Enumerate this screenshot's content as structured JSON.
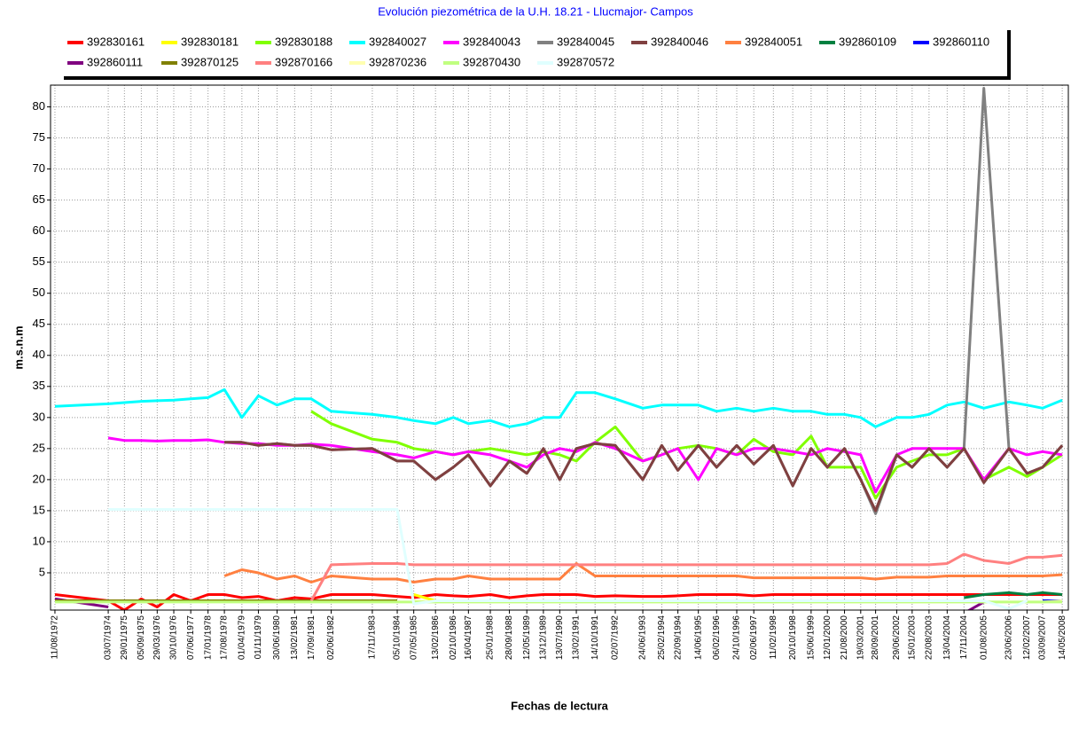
{
  "chart_data": {
    "type": "line",
    "title": "Evolución piezométrica de la U.H. 18.21 - Llucmajor- Campos",
    "xlabel": "Fechas de lectura",
    "ylabel": "m.s.n.m",
    "x": [
      "11/08/1972",
      "03/07/1974",
      "29/01/1975",
      "05/09/1975",
      "29/03/1976",
      "30/10/1976",
      "07/06/1977",
      "17/01/1978",
      "17/08/1978",
      "01/04/1979",
      "01/11/1979",
      "30/06/1980",
      "13/02/1981",
      "17/09/1981",
      "02/06/1982",
      "17/11/1983",
      "05/10/1984",
      "07/05/1985",
      "13/02/1986",
      "02/10/1986",
      "16/04/1987",
      "25/01/1988",
      "28/09/1988",
      "12/05/1989",
      "13/12/1989",
      "13/07/1990",
      "13/02/1991",
      "14/10/1991",
      "02/07/1992",
      "24/06/1993",
      "25/02/1994",
      "22/09/1994",
      "14/06/1995",
      "06/02/1996",
      "24/10/1996",
      "02/06/1997",
      "11/02/1998",
      "20/10/1998",
      "15/06/1999",
      "12/01/2000",
      "21/08/2000",
      "19/03/2001",
      "28/09/2001",
      "29/06/2002",
      "15/01/2003",
      "22/08/2003",
      "13/04/2004",
      "17/11/2004",
      "01/08/2005",
      "23/06/2006",
      "12/02/2007",
      "03/09/2007",
      "14/05/2008"
    ],
    "xlim": [
      "15/06/1972",
      "01/08/2008"
    ],
    "ylim": [
      -1,
      83.5
    ],
    "yticks": [
      5,
      10,
      15,
      20,
      25,
      30,
      35,
      40,
      45,
      50,
      55,
      60,
      65,
      70,
      75,
      80
    ],
    "grid": true,
    "series": [
      {
        "name": "392830161",
        "color": "#ff0000",
        "values": [
          1.5,
          0.5,
          -1,
          0.8,
          -0.5,
          1.5,
          0.5,
          1.5,
          1.5,
          1,
          1.2,
          0.5,
          1,
          0.8,
          1.5,
          1.5,
          1.2,
          1,
          1.5,
          1.3,
          1.2,
          1.5,
          1,
          1.3,
          1.5,
          1.5,
          1.5,
          1.2,
          1.3,
          1.2,
          1.2,
          1.3,
          1.5,
          1.5,
          1.5,
          1.3,
          1.5,
          1.5,
          1.5,
          1.5,
          1.5,
          1.5,
          1.5,
          1.5,
          1.5,
          1.5,
          1.5,
          1.5,
          1.5,
          1.5,
          1.5,
          1.5,
          1.5
        ]
      },
      {
        "name": "392830181",
        "color": "#ffff00",
        "values": [
          null,
          null,
          null,
          null,
          null,
          null,
          null,
          null,
          null,
          null,
          null,
          null,
          null,
          null,
          null,
          null,
          null,
          1.5,
          0.5,
          null,
          null,
          null,
          null,
          null,
          null,
          null,
          null,
          null,
          null,
          null,
          null,
          null,
          null,
          null,
          null,
          null,
          null,
          null,
          null,
          null,
          null,
          null,
          null,
          null,
          null,
          null,
          null,
          null,
          null,
          null,
          null,
          null,
          null
        ]
      },
      {
        "name": "392830188",
        "color": "#80ff00",
        "values": [
          null,
          null,
          null,
          null,
          null,
          null,
          null,
          null,
          null,
          null,
          null,
          null,
          null,
          31,
          29,
          26.5,
          26,
          25,
          24.5,
          24,
          24.5,
          25,
          24.5,
          24,
          24.5,
          24,
          23,
          26,
          28.5,
          23,
          24,
          25,
          25.5,
          25,
          24,
          26.5,
          24.5,
          24,
          27,
          22,
          22,
          22,
          17,
          22,
          23,
          24,
          24,
          25,
          20,
          22,
          20.5,
          22,
          24
        ]
      },
      {
        "name": "392840027",
        "color": "#00ffff",
        "values": [
          31.8,
          32.2,
          32.4,
          32.6,
          32.7,
          32.8,
          33,
          33.2,
          34.5,
          30,
          33.5,
          32,
          33,
          33,
          31,
          30.5,
          30,
          29.5,
          29,
          30,
          29,
          29.5,
          28.5,
          29,
          30,
          30,
          34,
          34,
          33,
          31.5,
          32,
          32,
          32,
          31,
          31.5,
          31,
          31.5,
          31,
          31,
          30.5,
          30.5,
          30,
          28.5,
          30,
          30,
          30.5,
          32,
          32.5,
          31.5,
          32.5,
          32,
          31.5,
          32.8
        ]
      },
      {
        "name": "392840043",
        "color": "#ff00ff",
        "values": [
          null,
          26.7,
          26.3,
          26.3,
          26.2,
          26.3,
          26.3,
          26.4,
          26,
          25.8,
          25.8,
          25.5,
          25.5,
          25.7,
          25.5,
          24.5,
          24,
          23.5,
          24.5,
          24,
          24.5,
          24,
          23,
          22,
          24,
          25,
          24.5,
          26,
          25,
          23,
          24,
          25,
          20,
          25,
          24,
          25,
          25,
          24.5,
          24,
          25,
          24.5,
          24,
          18,
          24,
          25,
          25,
          25,
          25,
          20,
          25,
          24,
          24.5,
          24
        ]
      },
      {
        "name": "392840045",
        "color": "#808080",
        "values": [
          null,
          null,
          null,
          null,
          null,
          null,
          null,
          null,
          26,
          26,
          25.5,
          25.8,
          25.5,
          25.5,
          24.8,
          25,
          23,
          23,
          20,
          22,
          24,
          19,
          23,
          21,
          25,
          20,
          25,
          25.8,
          25.5,
          20,
          25.5,
          21.5,
          25.5,
          22,
          25.5,
          22.5,
          25.5,
          19,
          25,
          22,
          25,
          20,
          14.5,
          24,
          22,
          25,
          22,
          25,
          83,
          25,
          21,
          22,
          25.5
        ]
      },
      {
        "name": "392840046",
        "color": "#804040",
        "values": [
          null,
          null,
          null,
          null,
          null,
          null,
          null,
          null,
          26,
          26,
          25.5,
          25.8,
          25.5,
          25.5,
          24.8,
          25,
          23,
          23,
          20,
          22,
          24,
          19,
          23,
          21,
          25,
          20,
          25,
          25.8,
          25.5,
          20,
          25.5,
          21.5,
          25.5,
          22,
          25.5,
          22.5,
          25.5,
          19,
          25,
          22,
          25,
          20,
          15,
          24,
          22,
          25,
          22,
          25,
          19.5,
          25,
          21,
          22,
          25.5
        ]
      },
      {
        "name": "392840051",
        "color": "#ff8040",
        "values": [
          null,
          null,
          null,
          null,
          null,
          null,
          null,
          null,
          4.5,
          5.5,
          5,
          4,
          4.5,
          3.5,
          4.5,
          4,
          4,
          3.5,
          4,
          4,
          4.5,
          4,
          4,
          4,
          4,
          4,
          6.5,
          4.5,
          4.5,
          4.5,
          4.5,
          4.5,
          4.5,
          4.5,
          4.5,
          4.2,
          4.2,
          4.2,
          4.2,
          4.2,
          4.2,
          4.2,
          4,
          4.3,
          4.3,
          4.3,
          4.5,
          4.5,
          4.5,
          4.5,
          4.5,
          4.5,
          4.7
        ]
      },
      {
        "name": "392860109",
        "color": "#008040",
        "values": [
          null,
          null,
          null,
          null,
          null,
          null,
          null,
          null,
          null,
          null,
          null,
          null,
          null,
          null,
          null,
          null,
          null,
          null,
          null,
          null,
          null,
          null,
          null,
          null,
          null,
          null,
          null,
          null,
          null,
          null,
          null,
          null,
          null,
          null,
          null,
          null,
          null,
          null,
          null,
          null,
          null,
          null,
          null,
          null,
          null,
          null,
          null,
          1,
          1.5,
          1.8,
          1.5,
          1.8,
          1.5
        ]
      },
      {
        "name": "392860110",
        "color": "#0000ff",
        "values": [
          null,
          null,
          null,
          null,
          null,
          null,
          null,
          null,
          null,
          null,
          null,
          null,
          null,
          null,
          null,
          null,
          null,
          null,
          null,
          null,
          null,
          null,
          null,
          null,
          null,
          null,
          null,
          null,
          null,
          null,
          null,
          null,
          null,
          null,
          null,
          null,
          null,
          null,
          null,
          null,
          null,
          null,
          null,
          null,
          null,
          null,
          null,
          null,
          null,
          null,
          null,
          0.5,
          0.5
        ]
      },
      {
        "name": "392860111",
        "color": "#800080",
        "values": [
          0.8,
          -0.5,
          null,
          null,
          null,
          null,
          null,
          null,
          null,
          null,
          null,
          null,
          null,
          null,
          null,
          null,
          null,
          null,
          null,
          null,
          null,
          null,
          null,
          null,
          null,
          null,
          null,
          null,
          null,
          null,
          null,
          null,
          null,
          null,
          null,
          null,
          null,
          null,
          null,
          null,
          null,
          null,
          null,
          null,
          null,
          null,
          null,
          -1.5,
          0.3,
          null,
          null,
          null,
          null
        ]
      },
      {
        "name": "392870125",
        "color": "#808000",
        "values": [
          0.5,
          0.5,
          0.5,
          0.5,
          0.5,
          0.5,
          0.5,
          0.5,
          0.5,
          0.5,
          0.5,
          0.5,
          0.5,
          0.5,
          0.5,
          0.5,
          0.5,
          null,
          null,
          null,
          null,
          null,
          null,
          null,
          null,
          null,
          null,
          null,
          null,
          null,
          null,
          null,
          null,
          null,
          null,
          null,
          null,
          null,
          null,
          null,
          null,
          null,
          null,
          null,
          null,
          null,
          null,
          null,
          null,
          null,
          null,
          null,
          null
        ]
      },
      {
        "name": "392870166",
        "color": "#ff8080",
        "values": [
          null,
          null,
          null,
          null,
          null,
          null,
          null,
          null,
          null,
          null,
          null,
          null,
          null,
          0.5,
          6.3,
          6.5,
          6.5,
          6.3,
          6.3,
          6.3,
          6.3,
          6.3,
          6.3,
          6.3,
          6.3,
          6.3,
          6.3,
          6.3,
          6.3,
          6.3,
          6.3,
          6.3,
          6.3,
          6.3,
          6.3,
          6.3,
          6.3,
          6.3,
          6.3,
          6.3,
          6.3,
          6.3,
          6.3,
          6.3,
          6.3,
          6.3,
          6.5,
          8,
          7,
          6.5,
          7.5,
          7.5,
          7.8
        ]
      },
      {
        "name": "392870236",
        "color": "#ffffb0",
        "values": [
          null,
          null,
          null,
          null,
          null,
          null,
          null,
          null,
          null,
          null,
          null,
          null,
          null,
          null,
          null,
          null,
          null,
          0.5,
          0.3,
          0.3,
          0.3,
          0.3,
          0.3,
          0.3,
          0.3,
          0.3,
          0.3,
          0.3,
          0.3,
          0.3,
          0.3,
          0.3,
          0.3,
          0.3,
          0.3,
          0.3,
          0.3,
          0.3,
          0.3,
          0.3,
          0.3,
          0.3,
          0.3,
          0.3,
          0.3,
          0.3,
          0.3,
          0.3,
          0.3,
          0.3,
          0.3,
          0.3,
          0.5
        ]
      },
      {
        "name": "392870430",
        "color": "#c0ff80",
        "values": [
          0.3,
          0.3,
          0.3,
          0.3,
          0.3,
          0.3,
          0.3,
          0.3,
          0.3,
          0.3,
          0.3,
          0.3,
          0.3,
          0.3,
          0.3,
          0.3,
          0.3,
          0.3,
          0.3,
          0.3,
          0.3,
          0.3,
          0.3,
          0.3,
          0.3,
          0.3,
          0.3,
          0.3,
          0.3,
          0.3,
          0.3,
          0.3,
          0.3,
          0.3,
          0.3,
          0.3,
          0.3,
          0.3,
          0.3,
          0.3,
          0.3,
          0.3,
          0.3,
          0.3,
          0.3,
          0.3,
          0.3,
          0.3,
          0.3,
          0.3,
          0.3,
          0.3,
          0.3
        ]
      },
      {
        "name": "392870572",
        "color": "#e0ffff",
        "values": [
          null,
          15.2,
          15.2,
          15.2,
          15.2,
          15.2,
          15.2,
          15.2,
          15.2,
          15.2,
          15.2,
          15.2,
          15.2,
          15.2,
          15.2,
          15.2,
          15.2,
          0,
          0.5,
          0.5,
          0.5,
          0.5,
          0.5,
          0.5,
          0.5,
          0.5,
          0.5,
          0.5,
          0.5,
          0.5,
          0.5,
          0.5,
          0.5,
          0.5,
          0.5,
          0.5,
          0.5,
          0.5,
          0.5,
          0.5,
          0.5,
          0.5,
          0.5,
          0.5,
          0.5,
          0.5,
          0.5,
          0.5,
          0.5,
          -0.8,
          0.5,
          null,
          null
        ]
      }
    ]
  }
}
